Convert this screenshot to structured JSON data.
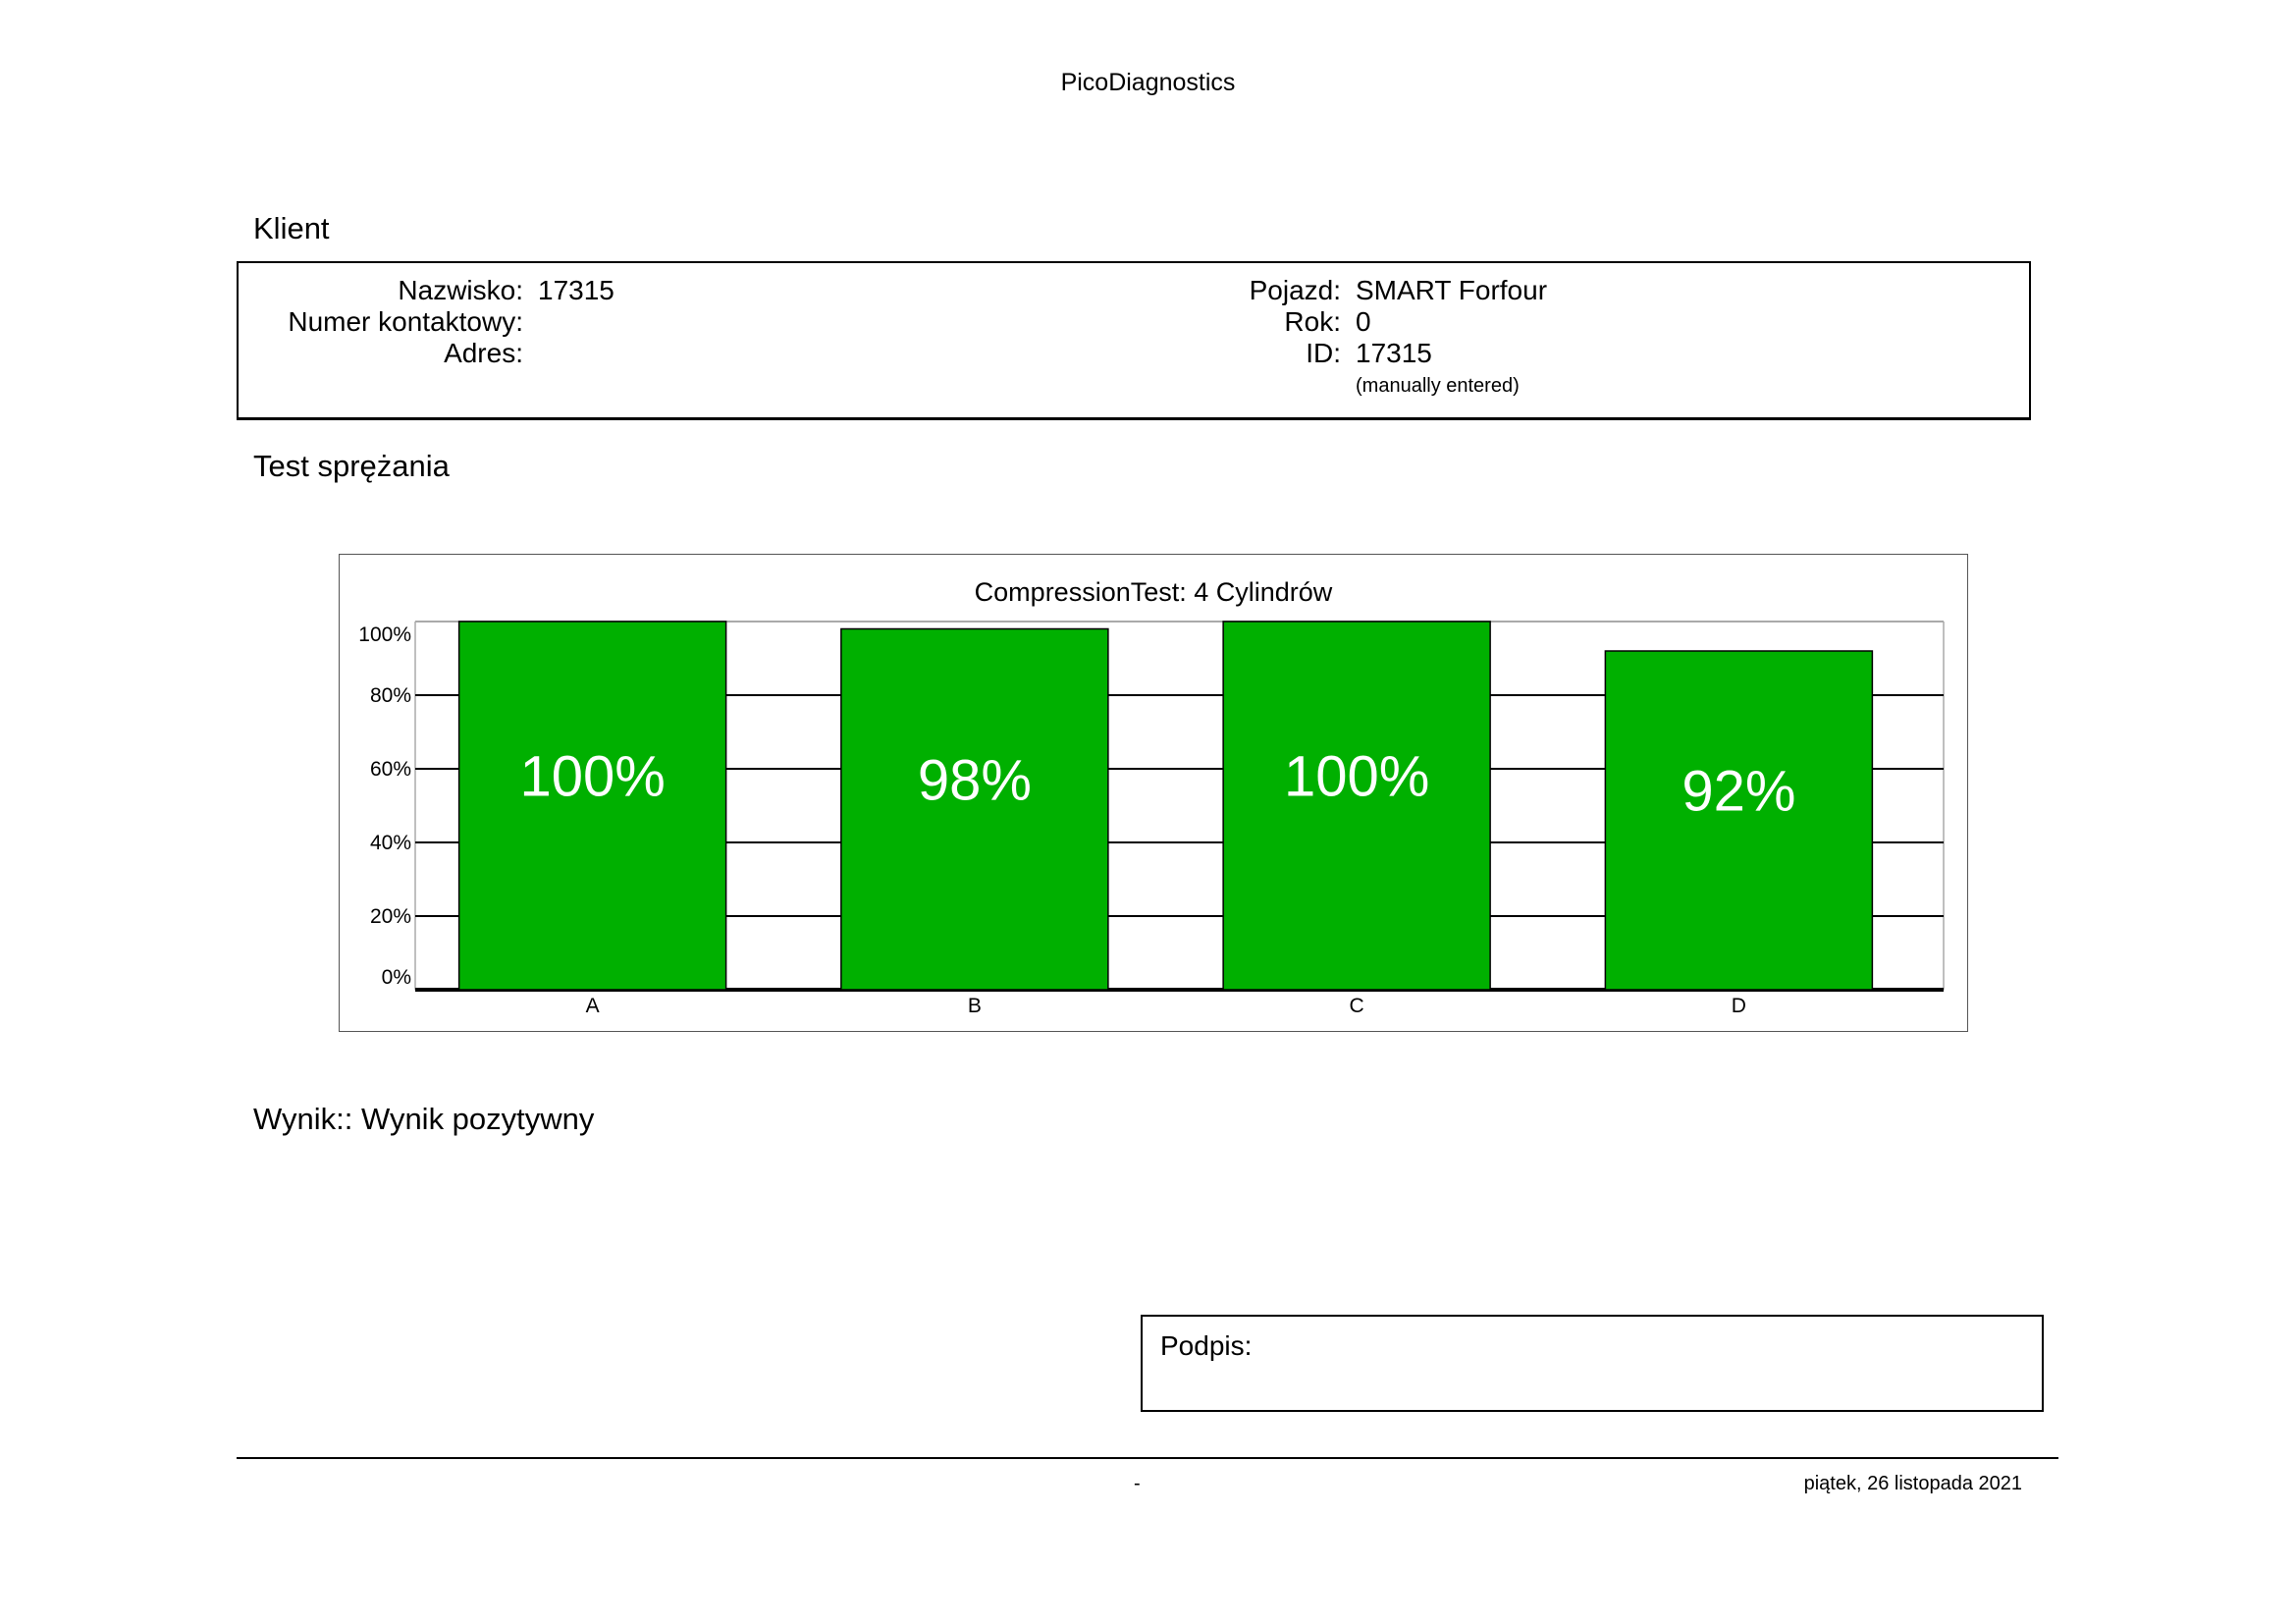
{
  "header": {
    "title": "PicoDiagnostics"
  },
  "client": {
    "section_title": "Klient",
    "left": [
      {
        "label": "Nazwisko:",
        "value": "17315"
      },
      {
        "label": "Numer kontaktowy:",
        "value": ""
      },
      {
        "label": "Adres:",
        "value": ""
      }
    ],
    "right": [
      {
        "label": "Pojazd:",
        "value": "SMART Forfour"
      },
      {
        "label": "Rok:",
        "value": "0"
      },
      {
        "label": "ID:",
        "value": "17315"
      }
    ],
    "id_note": "(manually entered)"
  },
  "test": {
    "section_title": "Test sprężania"
  },
  "chart_data": {
    "type": "bar",
    "title": "CompressionTest: 4 Cylindrów",
    "categories": [
      "A",
      "B",
      "C",
      "D"
    ],
    "values": [
      100,
      98,
      100,
      92
    ],
    "data_labels": [
      "100%",
      "98%",
      "100%",
      "92%"
    ],
    "yticks": [
      "0%",
      "20%",
      "40%",
      "60%",
      "80%",
      "100%"
    ],
    "ylim": [
      0,
      100
    ],
    "xlabel": "",
    "ylabel": "",
    "grid": true,
    "bar_color": "#00b000"
  },
  "result": {
    "text": "Wynik:: Wynik pozytywny"
  },
  "signature": {
    "label": "Podpis:"
  },
  "footer": {
    "center": "-",
    "date": "piątek, 26 listopada 2021"
  }
}
